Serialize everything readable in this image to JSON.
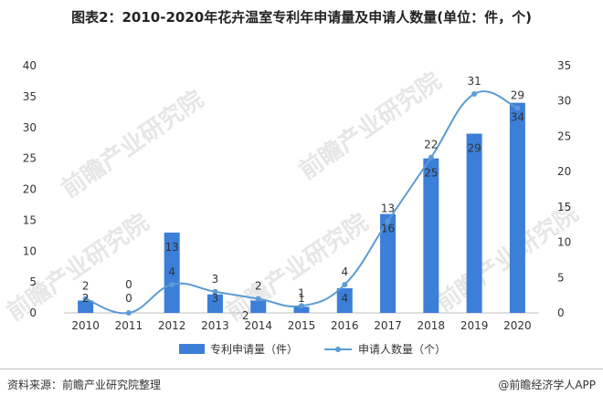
{
  "title": "图表2：2010-2020年花卉温室专利年申请量及申请人数量(单位：件，个)",
  "footer": {
    "source": "资料来源：前瞻产业研究院整理",
    "brand": "@前瞻经济学人APP"
  },
  "watermark": "前瞻产业研究院",
  "colors": {
    "bar": "#3b7fd9",
    "line": "#5b9bd5",
    "text": "#333333",
    "axis": "#bfbfbf"
  },
  "chart_data": {
    "type": "bar",
    "categories": [
      "2010",
      "2011",
      "2012",
      "2013",
      "2014",
      "2015",
      "2016",
      "2017",
      "2018",
      "2019",
      "2020"
    ],
    "series": [
      {
        "name": "专利申请量（件）",
        "type": "bar",
        "axis": "left",
        "values": [
          2,
          0,
          13,
          3,
          2,
          1,
          4,
          16,
          25,
          29,
          34
        ],
        "labels": [
          "2",
          "0",
          "13",
          "3",
          "2",
          "1",
          "4",
          "16",
          "25",
          "29",
          "34"
        ]
      },
      {
        "name": "申请人数量（个）",
        "type": "line",
        "axis": "right",
        "values": [
          2,
          0,
          4,
          3,
          2,
          1,
          4,
          13,
          22,
          31,
          29
        ],
        "labels": [
          "2",
          "0",
          "4",
          "3",
          "2",
          "1",
          "4",
          "13",
          "22",
          "31",
          "29"
        ]
      }
    ],
    "y_left": {
      "min": 0,
      "max": 40,
      "ticks": [
        0,
        5,
        10,
        15,
        20,
        25,
        30,
        35,
        40
      ]
    },
    "y_right": {
      "min": 0,
      "max": 35,
      "ticks": [
        0,
        5,
        10,
        15,
        20,
        25,
        30,
        35
      ]
    },
    "grid": false,
    "legend_position": "bottom"
  }
}
